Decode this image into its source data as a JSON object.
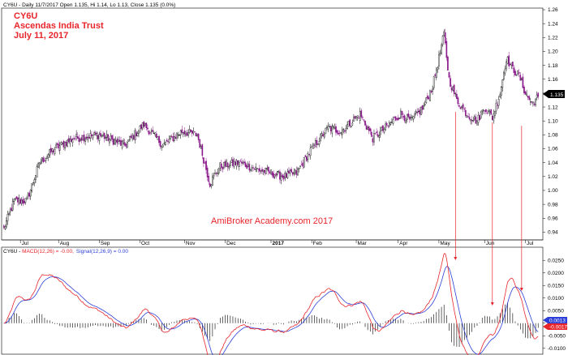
{
  "header": {
    "info_line": "CY6U - Daily 11/7/2017 Open 1.135, Hi 1.14, Lo 1.13, Close 1.135 (0.0%)",
    "symbol": "CY6U",
    "company": "Ascendas India Trust",
    "date": "July 11, 2017",
    "watermark": "AmiBroker Academy.com 2017",
    "last_price_tag": "1.135"
  },
  "macd_header": {
    "prefix": "CY6U - ",
    "macd_text": "MACD(12,26) = -0.00,",
    "signal_text": "Signal(12,26,9) = 0.00",
    "macd_color": "#e8252b",
    "signal_color": "#2c3fd8",
    "tag_top": "0.0013",
    "tag_bottom": "-0.0017"
  },
  "colors": {
    "up_candle": "#000000",
    "down_candle": "#8b1a8b",
    "macd_line": "#e8252b",
    "signal_line": "#2c3fd8",
    "histogram": "#000000",
    "annotation": "#e8252b",
    "title": "#e8252b"
  },
  "chart_data": [
    {
      "type": "candlestick",
      "title": "CY6U",
      "x_ticks": [
        "Jul",
        "Aug",
        "Sep",
        "Oct",
        "Nov",
        "Dec",
        "2017",
        "Feb",
        "Mar",
        "Apr",
        "May",
        "Jun",
        "Jul"
      ],
      "y_ticks": [
        "0.94",
        "0.96",
        "0.98",
        "1.00",
        "1.02",
        "1.04",
        "1.06",
        "1.08",
        "1.10",
        "1.12",
        "1.14",
        "1.16",
        "1.18",
        "1.20",
        "1.22",
        "1.24",
        "1.26"
      ],
      "ylim": [
        0.93,
        1.26
      ],
      "close_path": [
        {
          "bar": 0,
          "close": 0.945
        },
        {
          "bar": 8,
          "close": 0.985
        },
        {
          "bar": 18,
          "close": 0.985
        },
        {
          "bar": 28,
          "close": 1.04
        },
        {
          "bar": 40,
          "close": 1.06
        },
        {
          "bar": 55,
          "close": 1.075
        },
        {
          "bar": 75,
          "close": 1.08
        },
        {
          "bar": 95,
          "close": 1.065
        },
        {
          "bar": 110,
          "close": 1.095
        },
        {
          "bar": 125,
          "close": 1.065
        },
        {
          "bar": 140,
          "close": 1.085
        },
        {
          "bar": 152,
          "close": 1.08
        },
        {
          "bar": 162,
          "close": 1.01
        },
        {
          "bar": 170,
          "close": 1.035
        },
        {
          "bar": 185,
          "close": 1.04
        },
        {
          "bar": 200,
          "close": 1.03
        },
        {
          "bar": 210,
          "close": 1.025
        },
        {
          "bar": 220,
          "close": 1.02
        },
        {
          "bar": 230,
          "close": 1.025
        },
        {
          "bar": 242,
          "close": 1.06
        },
        {
          "bar": 255,
          "close": 1.09
        },
        {
          "bar": 265,
          "close": 1.085
        },
        {
          "bar": 280,
          "close": 1.11
        },
        {
          "bar": 290,
          "close": 1.075
        },
        {
          "bar": 300,
          "close": 1.09
        },
        {
          "bar": 312,
          "close": 1.11
        },
        {
          "bar": 320,
          "close": 1.1
        },
        {
          "bar": 330,
          "close": 1.12
        },
        {
          "bar": 337,
          "close": 1.15
        },
        {
          "bar": 342,
          "close": 1.19
        },
        {
          "bar": 346,
          "close": 1.225
        },
        {
          "bar": 350,
          "close": 1.16
        },
        {
          "bar": 356,
          "close": 1.13
        },
        {
          "bar": 364,
          "close": 1.11
        },
        {
          "bar": 372,
          "close": 1.1
        },
        {
          "bar": 378,
          "close": 1.12
        },
        {
          "bar": 384,
          "close": 1.105
        },
        {
          "bar": 390,
          "close": 1.14
        },
        {
          "bar": 395,
          "close": 1.19
        },
        {
          "bar": 400,
          "close": 1.175
        },
        {
          "bar": 405,
          "close": 1.165
        },
        {
          "bar": 410,
          "close": 1.14
        },
        {
          "bar": 415,
          "close": 1.125
        },
        {
          "bar": 420,
          "close": 1.135
        }
      ],
      "last_close": 1.135
    },
    {
      "type": "line",
      "title": "MACD",
      "series": [
        {
          "name": "MACD(12,26)",
          "key": "macd"
        },
        {
          "name": "Signal(12,26,9)",
          "key": "signal"
        },
        {
          "name": "Histogram",
          "key": "hist"
        }
      ],
      "y_ticks": [
        "-0.0100",
        "-0.0050",
        "0.0000",
        "0.0050",
        "0.0100",
        "0.0150",
        "0.0200",
        "0.0250"
      ],
      "ylim": [
        -0.012,
        0.027
      ]
    }
  ]
}
